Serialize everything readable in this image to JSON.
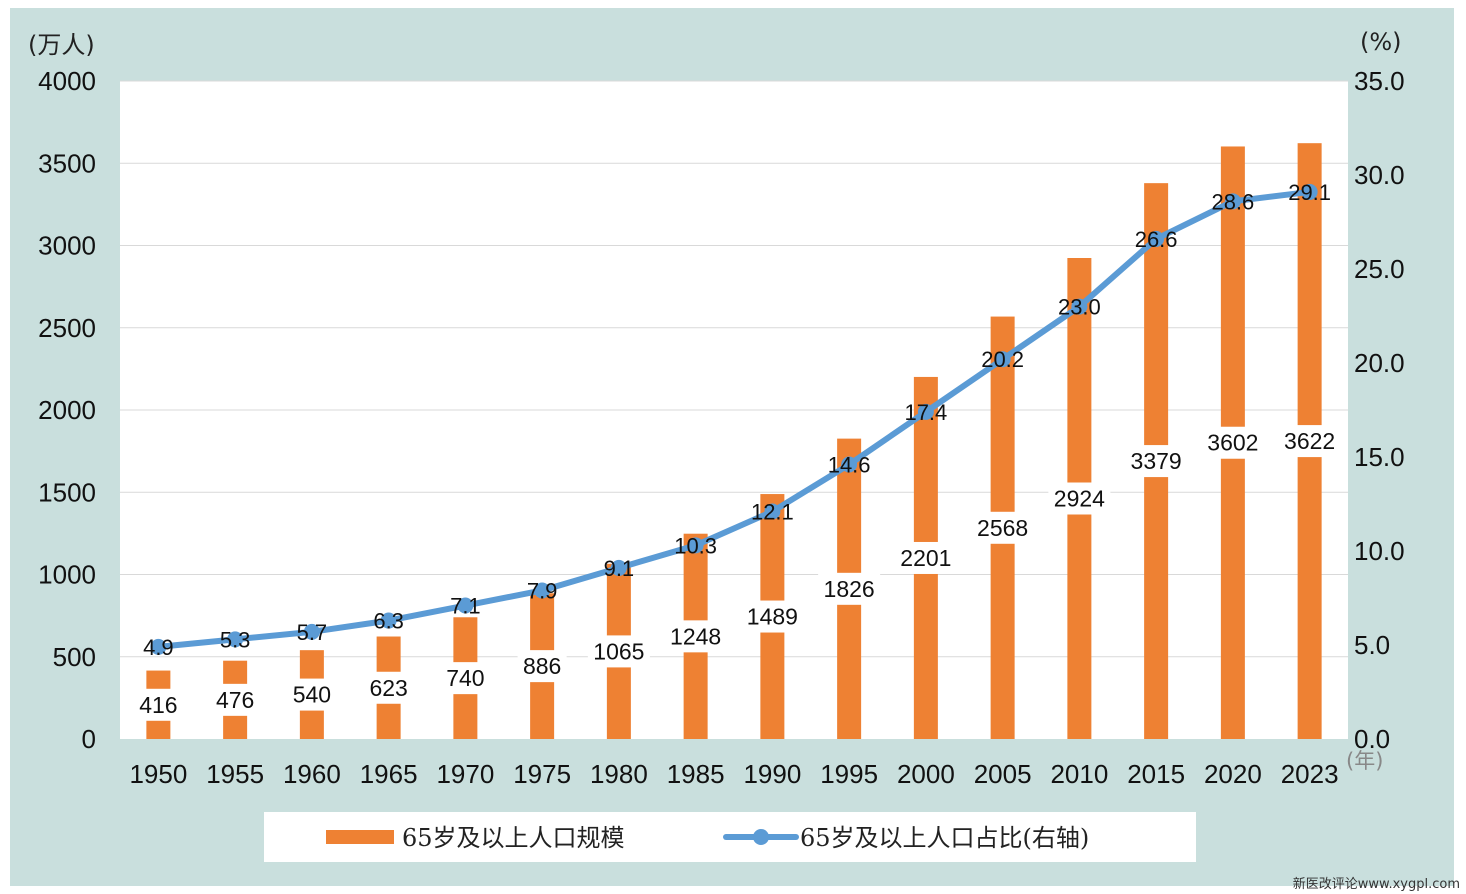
{
  "colors": {
    "panel_bg": "#c9dfdd",
    "plot_bg": "#ffffff",
    "bar": "#ee8133",
    "line": "#5b9bd5",
    "grid": "#d9d9d9"
  },
  "labels": {
    "y_left_unit": "(万人)",
    "y_right_unit": "(%)",
    "x_unit": "(年)",
    "watermark": "新医改评论www.xygpl.com"
  },
  "legend": {
    "bar_label": "65岁及以上人口规模",
    "line_label": "65岁及以上人口占比(右轴)"
  },
  "chart_data": {
    "type": "bar",
    "categories": [
      "1950",
      "1955",
      "1960",
      "1965",
      "1970",
      "1975",
      "1980",
      "1985",
      "1990",
      "1995",
      "2000",
      "2005",
      "2010",
      "2015",
      "2020",
      "2023"
    ],
    "series": [
      {
        "name": "65岁及以上人口规模",
        "type": "bar",
        "axis": "left",
        "values": [
          416,
          476,
          540,
          623,
          740,
          886,
          1065,
          1248,
          1489,
          1826,
          2201,
          2568,
          2924,
          3379,
          3602,
          3622
        ],
        "labels": [
          "416",
          "476",
          "540",
          "623",
          "740",
          "886",
          "1065",
          "1248",
          "1489",
          "1826",
          "2201",
          "2568",
          "2924",
          "3379",
          "3602",
          "3622"
        ]
      },
      {
        "name": "65岁及以上人口占比(右轴)",
        "type": "line",
        "axis": "right",
        "values": [
          4.9,
          5.3,
          5.7,
          6.3,
          7.1,
          7.9,
          9.1,
          10.3,
          12.1,
          14.6,
          17.4,
          20.2,
          23.0,
          26.6,
          28.6,
          29.1
        ],
        "labels": [
          "4.9",
          "5.3",
          "5.7",
          "6.3",
          "7.1",
          "7.9",
          "9.1",
          "10.3",
          "12.1",
          "14.6",
          "17.4",
          "20.2",
          "23.0",
          "26.6",
          "28.6",
          "29.1"
        ]
      }
    ],
    "y_left": {
      "ylim": [
        0,
        4000
      ],
      "ticks": [
        "0",
        "500",
        "1000",
        "1500",
        "2000",
        "2500",
        "3000",
        "3500",
        "4000"
      ]
    },
    "y_right": {
      "ylim": [
        0,
        35
      ],
      "ticks": [
        "0.0",
        "5.0",
        "10.0",
        "15.0",
        "20.0",
        "25.0",
        "30.0",
        "35.0"
      ]
    },
    "grid": true,
    "legend_position": "bottom"
  }
}
